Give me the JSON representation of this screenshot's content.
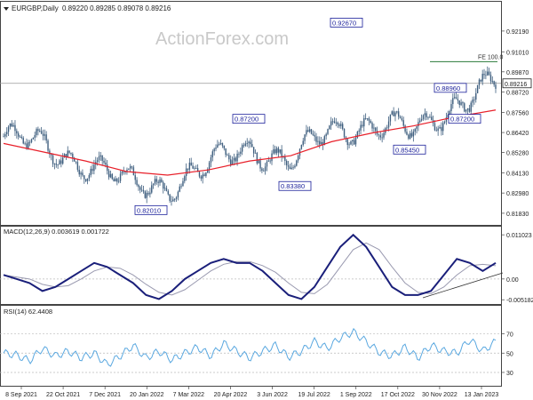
{
  "header": {
    "symbol": "EURGBP,Daily",
    "quote": "0.89220 0.89285 0.89078 0.89216"
  },
  "watermark": "ActionForex.com",
  "colors": {
    "candle": "#3f5f7f",
    "ma": "#e8202a",
    "macd": "#1a1f7a",
    "signal": "#9a9ab0",
    "rsi": "#5aa8e0",
    "fe_line": "#2a7a3a",
    "label_border": "#1a1f9a",
    "label_text": "#1a1f9a",
    "axis_text": "#222222"
  },
  "chart_data": [
    {
      "type": "candlestick",
      "title": "EURGBP,Daily",
      "subtitle": "0.89220 0.89285 0.89078 0.89216",
      "ylim": [
        0.8132,
        0.9355
      ],
      "y_ticks": [
        0.9219,
        0.9101,
        0.8987,
        0.8872,
        0.8756,
        0.8642,
        0.8528,
        0.8413,
        0.8298,
        0.8183
      ],
      "y_tick_labels": [
        "0.92190",
        "0.91010",
        "0.89870",
        "0.88720",
        "0.87560",
        "0.86420",
        "0.85280",
        "0.84130",
        "0.82980",
        "0.81830"
      ],
      "current_price": 0.89216,
      "current_price_label": "0.89216",
      "fe_level": {
        "label": "FE 100.0",
        "value": 0.9045
      },
      "annotations": [
        {
          "label": "0.92670",
          "value": 0.9267
        },
        {
          "label": "0.87200",
          "value": 0.872
        },
        {
          "label": "0.88960",
          "value": 0.8896
        },
        {
          "label": "0.87200",
          "value": 0.872
        },
        {
          "label": "0.85450",
          "value": 0.8545
        },
        {
          "label": "0.83380",
          "value": 0.8338
        },
        {
          "label": "0.82010",
          "value": 0.8201
        }
      ],
      "close_path": [
        [
          "8 Sep 2021",
          0.862
        ],
        [
          "22 Oct 2021",
          0.856
        ],
        [
          "7 Dec 2021",
          0.847
        ],
        [
          "20 Jan 2022",
          0.835
        ],
        [
          "7 Mar 2022",
          0.834
        ],
        [
          "20 Apr 2022",
          0.845
        ],
        [
          "3 Jun 2022",
          0.857
        ],
        [
          "19 Jul 2022",
          0.847
        ],
        [
          "1 Sep 2022",
          0.866
        ],
        [
          "17 Oct 2022",
          0.869
        ],
        [
          "30 Nov 2022",
          0.864
        ],
        [
          "13 Jan 2023",
          0.881
        ],
        [
          "13 Jan 2023",
          0.892
        ]
      ],
      "ma_path": [
        [
          "8 Sep 2021",
          0.858
        ],
        [
          "22 Oct 2021",
          0.853
        ],
        [
          "7 Dec 2021",
          0.848
        ],
        [
          "20 Jan 2022",
          0.842
        ],
        [
          "7 Mar 2022",
          0.84
        ],
        [
          "20 Apr 2022",
          0.843
        ],
        [
          "3 Jun 2022",
          0.848
        ],
        [
          "19 Jul 2022",
          0.851
        ],
        [
          "1 Sep 2022",
          0.859
        ],
        [
          "17 Oct 2022",
          0.864
        ],
        [
          "30 Nov 2022",
          0.868
        ],
        [
          "13 Jan 2023",
          0.873
        ],
        [
          "13 Jan 2023",
          0.877
        ]
      ]
    },
    {
      "type": "line",
      "title": "MACD(12,26,9) 0.003619 0.001722",
      "ylim": [
        -0.0058,
        0.0115
      ],
      "y_ticks": [
        0.011023,
        0.0,
        -0.005182
      ],
      "y_tick_labels": [
        "0.011023",
        "0.00",
        "-0.005182"
      ],
      "series": [
        {
          "values": [
            0.001,
            0.0,
            -0.001,
            -0.003,
            -0.002,
            0.0,
            0.002,
            0.004,
            0.003,
            0.001,
            -0.001,
            -0.004,
            -0.005,
            -0.003,
            0.0,
            0.002,
            0.004,
            0.005,
            0.004,
            0.004,
            0.002,
            -0.001,
            -0.004,
            -0.005,
            -0.002,
            0.003,
            0.008,
            0.011,
            0.008,
            0.003,
            -0.002,
            -0.004,
            -0.004,
            -0.003,
            0.001,
            0.005,
            0.004,
            0.002,
            0.004
          ]
        }
      ]
    },
    {
      "type": "line",
      "title": "RSI(14) 62.4408",
      "ylim": [
        18,
        88
      ],
      "y_ticks": [
        70,
        50,
        30
      ],
      "y_tick_labels": [
        "70",
        "50",
        "30"
      ],
      "series": [
        {
          "values": [
            50,
            48,
            42,
            55,
            47,
            52,
            45,
            50,
            38,
            47,
            58,
            45,
            52,
            43,
            50,
            56,
            47,
            60,
            52,
            45,
            52,
            58,
            46,
            52,
            62,
            55,
            66,
            72,
            62,
            51,
            47,
            56,
            45,
            58,
            52,
            50,
            64,
            52,
            62
          ]
        }
      ]
    }
  ],
  "x_axis": {
    "tick_labels": [
      "8 Sep 2021",
      "22 Oct 2021",
      "7 Dec 2021",
      "20 Jan 2022",
      "7 Mar 2022",
      "20 Apr 2022",
      "3 Jun 2022",
      "19 Jul 2022",
      "1 Sep 2022",
      "17 Oct 2022",
      "30 Nov 2022",
      "13 Jan 2023"
    ]
  }
}
